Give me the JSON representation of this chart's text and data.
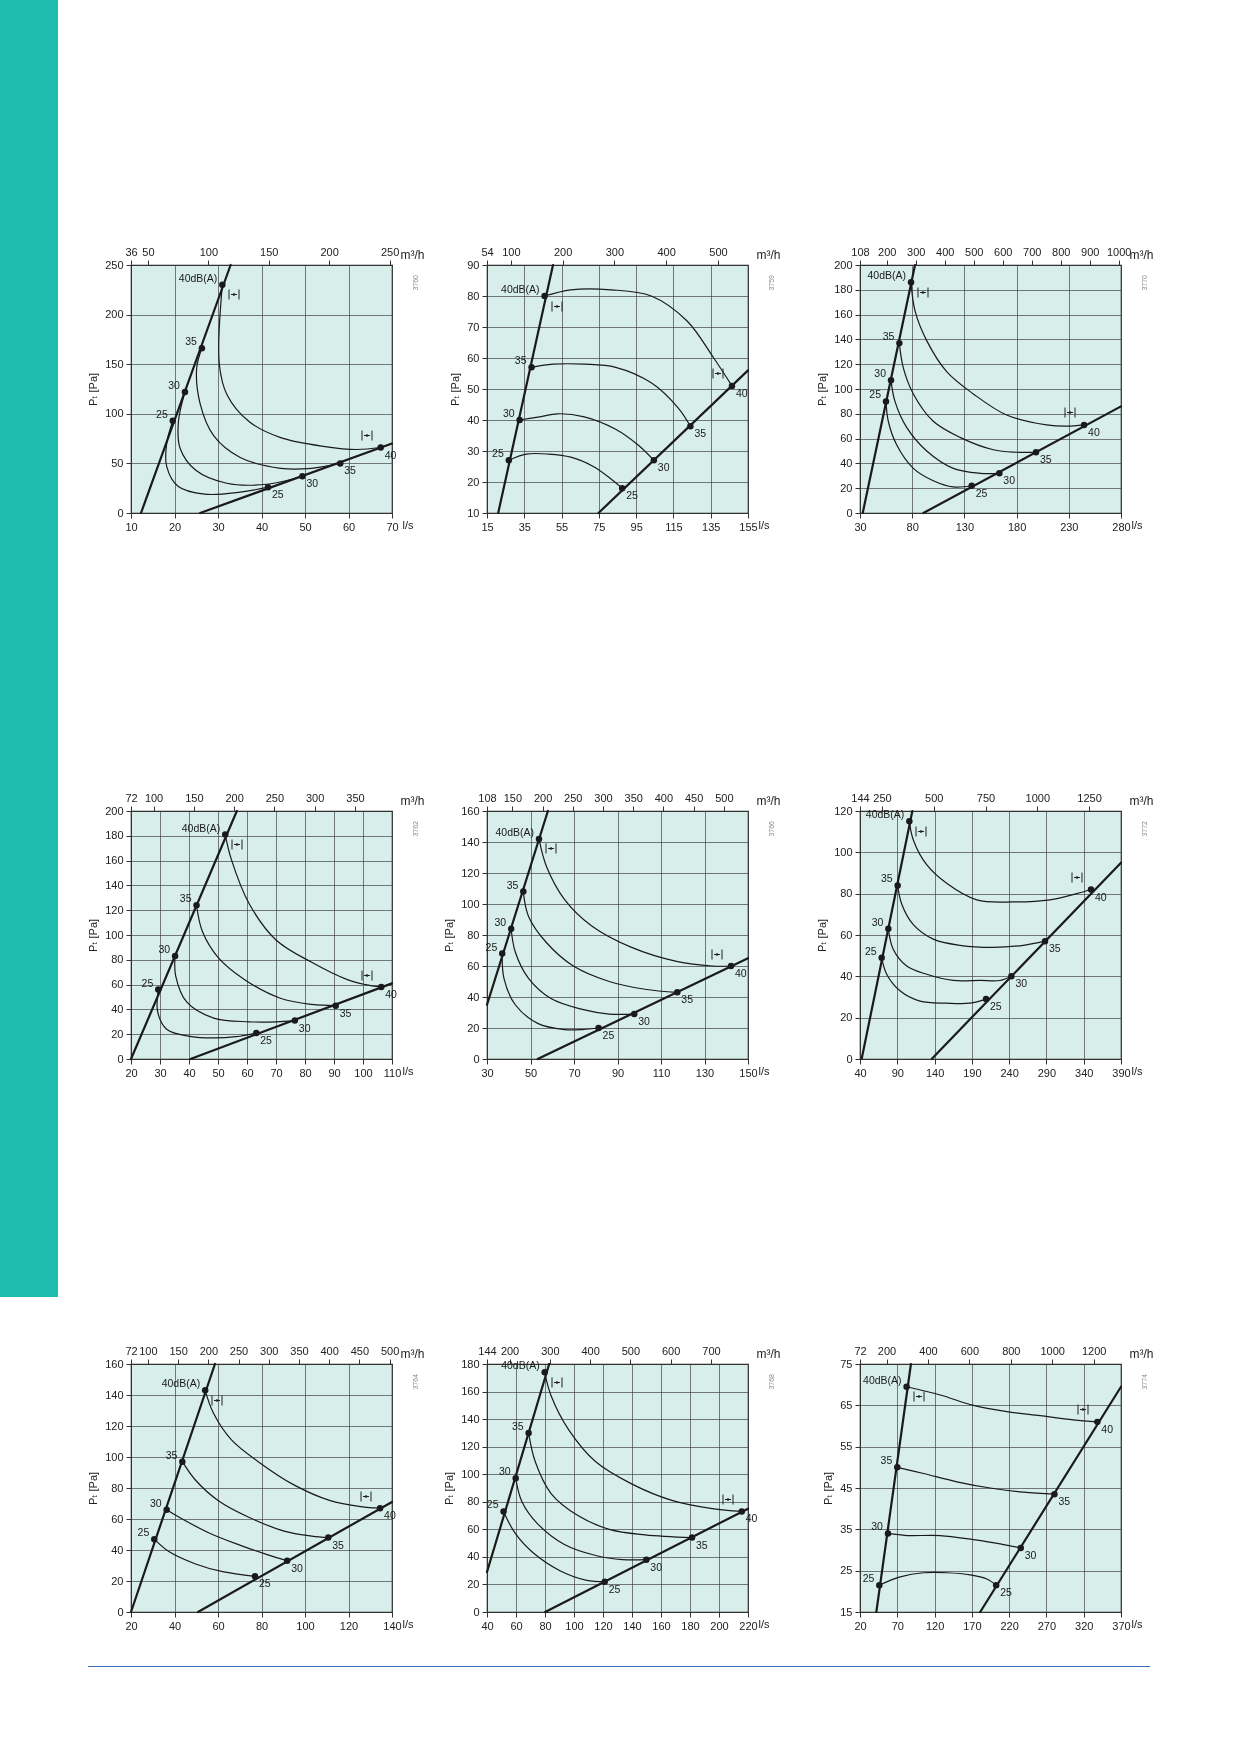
{
  "chart_data": [
    {
      "type": "line",
      "xlabel": "l/s",
      "x2label": "m³/h",
      "ylabel": "Pₜ [Pa]",
      "xlim": [
        10,
        70
      ],
      "xticks": [
        10,
        20,
        30,
        40,
        50,
        60,
        70
      ],
      "x2lim": [
        36,
        252
      ],
      "x2ticks": [
        36,
        50,
        100,
        150,
        200,
        250
      ],
      "ylim": [
        0,
        250
      ],
      "yticks": [
        0,
        50,
        100,
        150,
        200,
        250
      ],
      "grid": true,
      "line_style": "solid",
      "series": [
        {
          "color": "#1a1a1a",
          "x": [
            12.3,
            32.9
          ],
          "values": [
            0,
            250
          ]
        },
        {
          "color": "#1a1a1a",
          "x": [
            25.9,
            70
          ],
          "values": [
            0,
            70
          ]
        },
        {
          "color": "#1a1a1a",
          "x": [
            31,
            30.3,
            32.1,
            37.2,
            44.4,
            54.6,
            61.8,
            67.4
          ],
          "values": [
            230,
            150,
            119,
            92,
            76,
            67,
            64,
            66
          ]
        },
        {
          "color": "#1a1a1a",
          "x": [
            26.3,
            25.1,
            25.9,
            29,
            35.1,
            44.4,
            51.5,
            58.1
          ],
          "values": [
            166,
            146,
            110,
            78,
            56,
            45,
            45,
            50
          ]
        },
        {
          "color": "#1a1a1a",
          "x": [
            22.4,
            20.9,
            21.3,
            24.9,
            32,
            41.3,
            49.4
          ],
          "values": [
            122,
            92,
            65,
            43,
            30,
            29,
            37
          ]
        },
        {
          "color": "#1a1a1a",
          "x": [
            19.6,
            18.2,
            18.2,
            20.8,
            26.9,
            35.1,
            41.5
          ],
          "values": [
            93,
            70,
            47,
            27,
            19,
            21,
            26
          ]
        },
        {
          "type": "scatter",
          "marker": "circle",
          "color": "#1a1a1a",
          "x": [
            31,
            26.3,
            22.4,
            19.6,
            41.5,
            49.4,
            58.1,
            67.4
          ],
          "values": [
            230,
            166,
            122,
            93,
            26,
            37,
            50,
            66
          ]
        }
      ],
      "annotations": [
        {
          "text": "40dB(A)",
          "x": 31,
          "y": 230
        },
        {
          "text": "35",
          "x": 26.3,
          "y": 166
        },
        {
          "text": "30",
          "x": 22.4,
          "y": 122
        },
        {
          "text": "25",
          "x": 19.6,
          "y": 93
        },
        {
          "text": "25",
          "x": 41.5,
          "y": 26
        },
        {
          "text": "30",
          "x": 49.4,
          "y": 37
        },
        {
          "text": "35",
          "x": 58.1,
          "y": 50
        },
        {
          "text": "40",
          "x": 67.4,
          "y": 66
        },
        "3760"
      ]
    },
    {
      "type": "line",
      "xlabel": "l/s",
      "x2label": "m³/h",
      "ylabel": "Pₜ [Pa]",
      "xlim": [
        15,
        155
      ],
      "xticks": [
        15,
        35,
        55,
        75,
        95,
        115,
        135,
        155
      ],
      "x2lim": [
        54,
        558
      ],
      "x2ticks": [
        54,
        100,
        200,
        300,
        400,
        500
      ],
      "ylim": [
        10,
        90
      ],
      "yticks": [
        10,
        20,
        30,
        40,
        50,
        60,
        70,
        80,
        90
      ],
      "grid": true,
      "line_style": "solid",
      "series": [
        {
          "color": "#1a1a1a",
          "x": [
            21,
            50.4
          ],
          "values": [
            10,
            90
          ]
        },
        {
          "color": "#1a1a1a",
          "x": [
            74.8,
            155
          ],
          "values": [
            10,
            56
          ]
        },
        {
          "color": "#1a1a1a",
          "x": [
            45.9,
            60,
            81.5,
            103.1,
            122.2,
            136.6,
            146.4
          ],
          "values": [
            80,
            82,
            82,
            80,
            72,
            60,
            51
          ]
        },
        {
          "color": "#1a1a1a",
          "x": [
            38.9,
            50.4,
            67.2,
            84,
            103.1,
            117.4,
            124.1
          ],
          "values": [
            57,
            58,
            58,
            57,
            52,
            44,
            38
          ]
        },
        {
          "color": "#1a1a1a",
          "x": [
            32.5,
            43.2,
            52.8,
            67.2,
            84,
            95.9,
            104.5
          ],
          "values": [
            40,
            41,
            42,
            41,
            37,
            32,
            27
          ]
        },
        {
          "color": "#1a1a1a",
          "x": [
            26.7,
            36.1,
            48,
            60,
            72,
            81.5,
            87.5
          ],
          "values": [
            27,
            29,
            29,
            28,
            25,
            21,
            18
          ]
        },
        {
          "type": "scatter",
          "marker": "circle",
          "color": "#1a1a1a",
          "x": [
            45.9,
            38.9,
            32.5,
            26.7,
            87.5,
            104.5,
            124.1,
            146.4
          ],
          "values": [
            80,
            57,
            40,
            27,
            18,
            27,
            38,
            51
          ]
        }
      ],
      "annotations": [
        {
          "text": "40dB(A)",
          "x": 45.9,
          "y": 80
        },
        {
          "text": "35",
          "x": 38.9,
          "y": 57
        },
        {
          "text": "30",
          "x": 32.5,
          "y": 40
        },
        {
          "text": "25",
          "x": 26.7,
          "y": 27
        },
        {
          "text": "25",
          "x": 87.5,
          "y": 18
        },
        {
          "text": "30",
          "x": 104.5,
          "y": 27
        },
        {
          "text": "35",
          "x": 124.1,
          "y": 38
        },
        {
          "text": "40",
          "x": 146.4,
          "y": 51
        },
        "3759"
      ]
    },
    {
      "type": "line",
      "xlabel": "l/s",
      "x2label": "m³/h",
      "ylabel": "Pₜ [Pa]",
      "xlim": [
        30,
        280
      ],
      "xticks": [
        30,
        80,
        130,
        180,
        230,
        280
      ],
      "x2lim": [
        108,
        1008
      ],
      "x2ticks": [
        108,
        200,
        300,
        400,
        500,
        600,
        700,
        800,
        900,
        1000
      ],
      "ylim": [
        0,
        200
      ],
      "yticks": [
        0,
        20,
        40,
        60,
        80,
        100,
        120,
        140,
        160,
        180,
        200
      ],
      "grid": true,
      "line_style": "solid",
      "series": [
        {
          "color": "#1a1a1a",
          "x": [
            32.6,
            82.7
          ],
          "values": [
            0,
            200
          ]
        },
        {
          "color": "#1a1a1a",
          "x": [
            90.7,
            280
          ],
          "values": [
            0,
            86
          ]
        },
        {
          "color": "#1a1a1a",
          "x": [
            78.9,
            82.7,
            93.9,
            113,
            138.6,
            170.5,
            208.8,
            228,
            244.6
          ],
          "values": [
            186,
            163,
            139,
            114,
            96,
            79,
            71,
            70,
            71
          ]
        },
        {
          "color": "#1a1a1a",
          "x": [
            67.7,
            71.5,
            81.1,
            100.2,
            125.8,
            157.7,
            180,
            198.6
          ],
          "values": [
            137,
            117,
            96,
            74,
            61,
            51,
            49,
            49
          ]
        },
        {
          "color": "#1a1a1a",
          "x": [
            59.7,
            63.5,
            74.7,
            93.9,
            119.4,
            145,
            163.5
          ],
          "values": [
            107,
            90,
            69,
            50,
            36,
            32,
            32
          ]
        },
        {
          "color": "#1a1a1a",
          "x": [
            54.9,
            57.1,
            65.1,
            81.1,
            100.2,
            119.4,
            137
          ],
          "values": [
            90,
            74,
            55,
            36,
            26,
            21,
            22
          ]
        },
        {
          "type": "scatter",
          "marker": "circle",
          "color": "#1a1a1a",
          "x": [
            78.9,
            67.7,
            59.7,
            54.9,
            137,
            163.5,
            198.6,
            244.6
          ],
          "values": [
            186,
            137,
            107,
            90,
            22,
            32,
            49,
            71
          ]
        }
      ],
      "annotations": [
        {
          "text": "40dB(A)",
          "x": 78.9,
          "y": 186
        },
        {
          "text": "35",
          "x": 67.7,
          "y": 137
        },
        {
          "text": "30",
          "x": 59.7,
          "y": 107
        },
        {
          "text": "25",
          "x": 54.9,
          "y": 90
        },
        {
          "text": "25",
          "x": 137,
          "y": 22
        },
        {
          "text": "30",
          "x": 163.5,
          "y": 32
        },
        {
          "text": "35",
          "x": 198.6,
          "y": 49
        },
        {
          "text": "40",
          "x": 244.6,
          "y": 71
        },
        "3770"
      ]
    },
    {
      "type": "line",
      "xlabel": "l/s",
      "x2label": "m³/h",
      "ylabel": "Pₜ [Pa]",
      "xlim": [
        20,
        110
      ],
      "xticks": [
        20,
        30,
        40,
        50,
        60,
        70,
        80,
        90,
        100,
        110
      ],
      "x2lim": [
        72,
        396
      ],
      "x2ticks": [
        72,
        100,
        150,
        200,
        250,
        300,
        350
      ],
      "ylim": [
        0,
        200
      ],
      "yticks": [
        0,
        20,
        40,
        60,
        80,
        100,
        120,
        140,
        160,
        180,
        200
      ],
      "grid": true,
      "line_style": "solid",
      "series": [
        {
          "color": "#1a1a1a",
          "x": [
            20,
            56.5
          ],
          "values": [
            0,
            200
          ]
        },
        {
          "color": "#1a1a1a",
          "x": [
            40.5,
            110
          ],
          "values": [
            0,
            61
          ]
        },
        {
          "color": "#1a1a1a",
          "x": [
            52.5,
            54.6,
            60.8,
            70,
            82.3,
            94.6,
            100.8,
            106.3
          ],
          "values": [
            181,
            161,
            125,
            96,
            78,
            64,
            60,
            58
          ]
        },
        {
          "color": "#1a1a1a",
          "x": [
            42.6,
            44.6,
            50,
            59.2,
            71.5,
            82.3,
            90.6
          ],
          "values": [
            124,
            103,
            82,
            64,
            49,
            44,
            43
          ]
        },
        {
          "color": "#1a1a1a",
          "x": [
            35.2,
            35.4,
            39.2,
            48.5,
            60.8,
            70,
            76.5
          ],
          "values": [
            83,
            67,
            46,
            33,
            30,
            30,
            31
          ]
        },
        {
          "color": "#1a1a1a",
          "x": [
            29.4,
            29.2,
            32.3,
            40.8,
            48.5,
            56.2,
            63.2
          ],
          "values": [
            56,
            38,
            24,
            18,
            17,
            18,
            21
          ]
        },
        {
          "type": "scatter",
          "marker": "circle",
          "color": "#1a1a1a",
          "x": [
            52.5,
            42.6,
            35.2,
            29.4,
            63.2,
            76.5,
            90.6,
            106.3
          ],
          "values": [
            181,
            124,
            83,
            56,
            21,
            31,
            43,
            58
          ]
        }
      ],
      "annotations": [
        {
          "text": "40dB(A)",
          "x": 52.5,
          "y": 181
        },
        {
          "text": "35",
          "x": 42.6,
          "y": 124
        },
        {
          "text": "30",
          "x": 35.2,
          "y": 83
        },
        {
          "text": "25",
          "x": 29.4,
          "y": 56
        },
        {
          "text": "25",
          "x": 63.2,
          "y": 21
        },
        {
          "text": "30",
          "x": 76.5,
          "y": 31
        },
        {
          "text": "35",
          "x": 90.6,
          "y": 43
        },
        {
          "text": "40",
          "x": 106.3,
          "y": 58
        },
        "3762"
      ]
    },
    {
      "type": "line",
      "xlabel": "l/s",
      "x2label": "m³/h",
      "ylabel": "Pₜ [Pa]",
      "xlim": [
        30,
        150
      ],
      "xticks": [
        30,
        50,
        70,
        90,
        110,
        130,
        150
      ],
      "x2lim": [
        108,
        540
      ],
      "x2ticks": [
        108,
        150,
        200,
        250,
        300,
        350,
        400,
        450,
        500
      ],
      "ylim": [
        0,
        160
      ],
      "yticks": [
        0,
        20,
        40,
        60,
        80,
        100,
        120,
        140,
        160
      ],
      "grid": true,
      "line_style": "solid",
      "series": [
        {
          "color": "#1a1a1a",
          "x": [
            30,
            58
          ],
          "values": [
            35,
            160
          ]
        },
        {
          "color": "#1a1a1a",
          "x": [
            53.3,
            150
          ],
          "values": [
            0,
            65
          ]
        },
        {
          "color": "#1a1a1a",
          "x": [
            53.9,
            57.4,
            65.6,
            78,
            96.5,
            117.1,
            133.5,
            142.2
          ],
          "values": [
            142,
            124,
            103,
            86,
            72,
            63,
            60,
            60
          ]
        },
        {
          "color": "#1a1a1a",
          "x": [
            46.7,
            49.1,
            57.4,
            69.7,
            86.2,
            102.6,
            117.5
          ],
          "values": [
            108,
            92,
            75,
            60,
            50,
            45,
            43
          ]
        },
        {
          "color": "#1a1a1a",
          "x": [
            41.1,
            43,
            49.1,
            59.4,
            73.8,
            86.2,
            97.7
          ],
          "values": [
            84,
            69,
            52,
            39,
            32,
            29,
            29
          ]
        },
        {
          "color": "#1a1a1a",
          "x": [
            37,
            37.8,
            43,
            53.3,
            65.6,
            73.8,
            81.3
          ],
          "values": [
            68,
            52,
            35,
            23,
            19,
            19,
            20
          ]
        },
        {
          "type": "scatter",
          "marker": "circle",
          "color": "#1a1a1a",
          "x": [
            53.9,
            46.7,
            41.1,
            37,
            81.3,
            97.7,
            117.5,
            142.2
          ],
          "values": [
            142,
            108,
            84,
            68,
            20,
            29,
            43,
            60
          ]
        }
      ],
      "annotations": [
        {
          "text": "40dB(A)",
          "x": 53.9,
          "y": 142
        },
        {
          "text": "35",
          "x": 46.7,
          "y": 108
        },
        {
          "text": "30",
          "x": 41.1,
          "y": 84
        },
        {
          "text": "25",
          "x": 37,
          "y": 68
        },
        {
          "text": "25",
          "x": 81.3,
          "y": 20
        },
        {
          "text": "30",
          "x": 97.7,
          "y": 29
        },
        {
          "text": "35",
          "x": 117.5,
          "y": 43
        },
        {
          "text": "40",
          "x": 142.2,
          "y": 60
        },
        "3766"
      ]
    },
    {
      "type": "line",
      "xlabel": "l/s",
      "x2label": "m³/h",
      "ylabel": "Pₜ [Pa]",
      "xlim": [
        40,
        390
      ],
      "xticks": [
        40,
        90,
        140,
        190,
        240,
        290,
        340,
        390
      ],
      "x2lim": [
        144,
        1404
      ],
      "x2ticks": [
        144,
        250,
        500,
        750,
        1000,
        1250
      ],
      "ylim": [
        0,
        120
      ],
      "yticks": [
        0,
        20,
        40,
        60,
        80,
        100,
        120
      ],
      "grid": true,
      "line_style": "solid",
      "series": [
        {
          "color": "#1a1a1a",
          "x": [
            42.2,
            110.2
          ],
          "values": [
            0,
            120
          ]
        },
        {
          "color": "#1a1a1a",
          "x": [
            136.1,
            390
          ],
          "values": [
            0,
            95
          ]
        },
        {
          "color": "#1a1a1a",
          "x": [
            106.2,
            111.5,
            129.4,
            156.2,
            196.5,
            245.6,
            294.8,
            330.6,
            349.8
          ],
          "values": [
            115,
            106,
            94,
            85,
            77,
            76,
            77,
            80,
            82
          ]
        },
        {
          "color": "#1a1a1a",
          "x": [
            90.5,
            95.9,
            111.5,
            138.3,
            174.1,
            218.8,
            259,
            288.1
          ],
          "values": [
            84,
            75,
            65,
            58,
            55,
            54,
            55,
            57
          ]
        },
        {
          "color": "#1a1a1a",
          "x": [
            78,
            84.7,
            102.6,
            129.4,
            165.1,
            200.9,
            227.7,
            243
          ],
          "values": [
            63,
            53,
            45,
            41,
            38,
            38,
            38,
            40
          ]
        },
        {
          "color": "#1a1a1a",
          "x": [
            69.1,
            75.8,
            93.6,
            120.5,
            156.2,
            187.5,
            209
          ],
          "values": [
            49,
            41,
            33,
            28,
            27,
            27,
            29
          ]
        },
        {
          "type": "scatter",
          "marker": "circle",
          "color": "#1a1a1a",
          "x": [
            106.2,
            90.5,
            78,
            69.1,
            209,
            243,
            288.1,
            349.8
          ],
          "values": [
            115,
            84,
            63,
            49,
            29,
            40,
            57,
            82
          ]
        }
      ],
      "annotations": [
        {
          "text": "40dB(A)",
          "x": 106.2,
          "y": 115
        },
        {
          "text": "35",
          "x": 90.5,
          "y": 84
        },
        {
          "text": "30",
          "x": 78,
          "y": 63
        },
        {
          "text": "25",
          "x": 69.1,
          "y": 49
        },
        {
          "text": "25",
          "x": 209,
          "y": 29
        },
        {
          "text": "30",
          "x": 243,
          "y": 40
        },
        {
          "text": "35",
          "x": 288.1,
          "y": 57
        },
        {
          "text": "40",
          "x": 349.8,
          "y": 82
        },
        "3772"
      ]
    },
    {
      "type": "line",
      "xlabel": "l/s",
      "x2label": "m³/h",
      "ylabel": "Pₜ [Pa]",
      "xlim": [
        20,
        140
      ],
      "xticks": [
        20,
        40,
        60,
        80,
        100,
        120,
        140
      ],
      "x2lim": [
        72,
        504
      ],
      "x2ticks": [
        72,
        100,
        150,
        200,
        250,
        300,
        350,
        400,
        450,
        500
      ],
      "ylim": [
        0,
        160
      ],
      "yticks": [
        0,
        20,
        40,
        60,
        80,
        100,
        120,
        140,
        160
      ],
      "grid": true,
      "line_style": "solid",
      "series": [
        {
          "color": "#1a1a1a",
          "x": [
            20,
            58.6
          ],
          "values": [
            0,
            160
          ]
        },
        {
          "color": "#1a1a1a",
          "x": [
            50.8,
            140
          ],
          "values": [
            0,
            71
          ]
        },
        {
          "color": "#1a1a1a",
          "x": [
            54.1,
            58,
            66.2,
            78.5,
            94.9,
            111.3,
            125.6,
            134.5
          ],
          "values": [
            143,
            128,
            111,
            97,
            82,
            72,
            68,
            67
          ]
        },
        {
          "color": "#1a1a1a",
          "x": [
            43.6,
            49.7,
            60,
            74.4,
            90.8,
            103.1,
            110.7
          ],
          "values": [
            97,
            85,
            72,
            61,
            52,
            49,
            48
          ]
        },
        {
          "color": "#1a1a1a",
          "x": [
            36.4,
            43.6,
            55.9,
            70.3,
            82.6,
            91.8
          ],
          "values": [
            66,
            60,
            51,
            43,
            37,
            33
          ]
        },
        {
          "color": "#1a1a1a",
          "x": [
            30.7,
            37.4,
            49.7,
            62.1,
            77
          ],
          "values": [
            47,
            39,
            31,
            26,
            23
          ]
        },
        {
          "type": "scatter",
          "marker": "circle",
          "color": "#1a1a1a",
          "x": [
            54.1,
            43.6,
            36.4,
            30.7,
            77,
            91.8,
            110.7,
            134.5
          ],
          "values": [
            143,
            97,
            66,
            47,
            23,
            33,
            48,
            67
          ]
        }
      ],
      "annotations": [
        {
          "text": "40dB(A)",
          "x": 54.1,
          "y": 143
        },
        {
          "text": "35",
          "x": 43.6,
          "y": 97
        },
        {
          "text": "30",
          "x": 36.4,
          "y": 66
        },
        {
          "text": "25",
          "x": 30.7,
          "y": 47
        },
        {
          "text": "25",
          "x": 77,
          "y": 23
        },
        {
          "text": "30",
          "x": 91.8,
          "y": 33
        },
        {
          "text": "35",
          "x": 110.7,
          "y": 48
        },
        {
          "text": "40",
          "x": 134.5,
          "y": 67
        },
        "3764"
      ]
    },
    {
      "type": "line",
      "xlabel": "l/s",
      "x2label": "m³/h",
      "ylabel": "Pₜ [Pa]",
      "xlim": [
        40,
        220
      ],
      "xticks": [
        40,
        60,
        80,
        100,
        120,
        140,
        160,
        180,
        200,
        220
      ],
      "x2lim": [
        144,
        792
      ],
      "x2ticks": [
        144,
        200,
        300,
        400,
        500,
        600,
        700
      ],
      "ylim": [
        0,
        180
      ],
      "yticks": [
        0,
        20,
        40,
        60,
        80,
        100,
        120,
        140,
        160,
        180
      ],
      "grid": true,
      "line_style": "solid",
      "series": [
        {
          "color": "#1a1a1a",
          "x": [
            40,
            82.9
          ],
          "values": [
            29,
            180
          ]
        },
        {
          "color": "#1a1a1a",
          "x": [
            80.1,
            220
          ],
          "values": [
            0,
            75
          ]
        },
        {
          "color": "#1a1a1a",
          "x": [
            79.8,
            84.2,
            96.5,
            115,
            139.7,
            167.5,
            195.3,
            215.7
          ],
          "values": [
            174,
            157,
            132,
            109,
            93,
            81,
            75,
            73
          ]
        },
        {
          "color": "#1a1a1a",
          "x": [
            68.7,
            73.3,
            84.2,
            102.7,
            124.3,
            149,
            181.4
          ],
          "values": [
            130,
            109,
            86,
            70,
            60,
            56,
            54
          ]
        },
        {
          "color": "#1a1a1a",
          "x": [
            59.8,
            64.1,
            74.9,
            93.4,
            115,
            133.5,
            149.9
          ],
          "values": [
            97,
            80,
            64,
            49,
            41,
            38,
            38
          ]
        },
        {
          "color": "#1a1a1a",
          "x": [
            51.4,
            59.5,
            71.8,
            90.3,
            108.8,
            121.2
          ],
          "values": [
            73,
            57,
            43,
            30,
            23,
            22
          ]
        },
        {
          "type": "scatter",
          "marker": "circle",
          "color": "#1a1a1a",
          "x": [
            79.8,
            68.7,
            59.8,
            51.4,
            121.2,
            149.9,
            181.4,
            215.7
          ],
          "values": [
            174,
            130,
            97,
            73,
            22,
            38,
            54,
            73
          ]
        }
      ],
      "annotations": [
        {
          "text": "40dB(A)",
          "x": 79.8,
          "y": 174
        },
        {
          "text": "35",
          "x": 68.7,
          "y": 130
        },
        {
          "text": "30",
          "x": 59.8,
          "y": 97
        },
        {
          "text": "25",
          "x": 51.4,
          "y": 73
        },
        {
          "text": "25",
          "x": 121.2,
          "y": 22
        },
        {
          "text": "30",
          "x": 149.9,
          "y": 38
        },
        {
          "text": "35",
          "x": 181.4,
          "y": 54
        },
        {
          "text": "40",
          "x": 215.7,
          "y": 73
        },
        "3768"
      ]
    },
    {
      "type": "line",
      "xlabel": "l/s",
      "x2label": "m³/h",
      "ylabel": "Pₜ [Pa]",
      "xlim": [
        20,
        370
      ],
      "xticks": [
        20,
        70,
        120,
        170,
        220,
        270,
        320,
        370
      ],
      "x2lim": [
        72,
        1332
      ],
      "x2ticks": [
        72,
        200,
        400,
        600,
        800,
        1000,
        1200
      ],
      "ylim": [
        15,
        75
      ],
      "yticks": [
        15,
        25,
        35,
        45,
        55,
        65,
        75
      ],
      "grid": true,
      "line_style": "solid",
      "series": [
        {
          "color": "#1a1a1a",
          "x": [
            41.9,
            88.3
          ],
          "values": [
            15,
            75
          ]
        },
        {
          "color": "#1a1a1a",
          "x": [
            181.2,
            370
          ],
          "values": [
            15,
            69.5
          ]
        },
        {
          "color": "#1a1a1a",
          "x": [
            82.5,
            127.6,
            172.2,
            216.9,
            261.5,
            306.1,
            338.3
          ],
          "values": [
            69.5,
            67.5,
            65,
            63.5,
            62.5,
            61.5,
            61
          ]
        },
        {
          "color": "#1a1a1a",
          "x": [
            70,
            105.3,
            149.9,
            194.5,
            239.2,
            280.7
          ],
          "values": [
            50,
            48.5,
            46.5,
            45,
            44,
            43.5
          ]
        },
        {
          "color": "#1a1a1a",
          "x": [
            57.5,
            82.9,
            127.6,
            172.2,
            207.9,
            235.6
          ],
          "values": [
            34,
            33.5,
            33.5,
            32.5,
            31.5,
            30.5
          ]
        },
        {
          "color": "#1a1a1a",
          "x": [
            45.9,
            74,
            105.3,
            136.5,
            167.8,
            190.1,
            202.6
          ],
          "values": [
            21.5,
            23.5,
            24.5,
            24.5,
            24,
            23,
            21.5
          ]
        },
        {
          "type": "scatter",
          "marker": "circle",
          "color": "#1a1a1a",
          "x": [
            82.5,
            70,
            57.5,
            45.9,
            202.6,
            235.6,
            280.7,
            338.3
          ],
          "values": [
            69.5,
            50,
            34,
            21.5,
            21.5,
            30.5,
            43.5,
            61
          ]
        }
      ],
      "annotations": [
        {
          "text": "40dB(A)",
          "x": 82.5,
          "y": 69.5
        },
        {
          "text": "35",
          "x": 70,
          "y": 50
        },
        {
          "text": "30",
          "x": 57.5,
          "y": 34
        },
        {
          "text": "25",
          "x": 45.9,
          "y": 21.5
        },
        {
          "text": "25",
          "x": 202.6,
          "y": 21.5
        },
        {
          "text": "30",
          "x": 235.6,
          "y": 30.5
        },
        {
          "text": "35",
          "x": 280.7,
          "y": 43.5
        },
        {
          "text": "40",
          "x": 338.3,
          "y": 61
        },
        "3774"
      ]
    }
  ]
}
